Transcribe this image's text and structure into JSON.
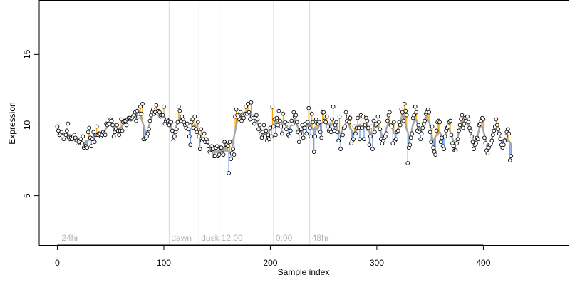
{
  "chart_data": {
    "type": "scatter",
    "title": "",
    "xlabel": "Sample index",
    "ylabel": "Expression",
    "xlim": [
      -17,
      480
    ],
    "ylim": [
      1.5,
      18.8
    ],
    "x_ticks": [
      0,
      100,
      200,
      300,
      400
    ],
    "y_ticks": [
      5,
      10,
      15
    ],
    "grid": false,
    "legend": "none",
    "colors": {
      "above_fit": "#ffa500",
      "below_fit": "#6495ed",
      "fit_line": "#a6a6a6",
      "marker_fill": "#ffffff",
      "marker_edge": "#000000",
      "annotation_line": "#d9d9d9",
      "annotation_text": "#b3b3b3"
    },
    "annotations": [
      {
        "x": 2,
        "label": "24hr",
        "line": false
      },
      {
        "x": 105,
        "label": "dawn",
        "line": true
      },
      {
        "x": 133,
        "label": "dusk",
        "line": true
      },
      {
        "x": 152,
        "label": "12:00",
        "line": true
      },
      {
        "x": 203,
        "label": "0:00",
        "line": true
      },
      {
        "x": 237,
        "label": "48hr",
        "line": true
      }
    ],
    "series": [
      {
        "name": "",
        "x_start": 0,
        "values": [
          9.9,
          9.6,
          9.3,
          9.4,
          9.5,
          9.2,
          9.0,
          9.2,
          9.3,
          9.6,
          10.1,
          9.1,
          9.0,
          9.1,
          9.0,
          9.2,
          9.3,
          9.1,
          8.9,
          8.7,
          8.8,
          8.9,
          9.0,
          8.7,
          9.2,
          8.4,
          8.5,
          8.5,
          8.4,
          9.5,
          9.8,
          9.1,
          8.5,
          9.0,
          9.5,
          8.8,
          9.3,
          9.9,
          9.3,
          9.4,
          9.4,
          9.2,
          9.3,
          9.5,
          9.4,
          9.3,
          10.1,
          10.0,
          10.1,
          10.1,
          10.4,
          10.3,
          10.0,
          9.2,
          9.5,
          9.7,
          10.0,
          9.6,
          9.3,
          9.6,
          10.4,
          9.6,
          10.2,
          10.3,
          10.3,
          10.0,
          10.4,
          10.5,
          10.5,
          10.4,
          10.5,
          10.6,
          10.7,
          10.9,
          10.3,
          11.0,
          10.6,
          10.8,
          11.3,
          10.8,
          11.5,
          9.0,
          9.0,
          9.1,
          9.2,
          9.4,
          9.7,
          10.3,
          10.7,
          10.9,
          11.1,
          10.8,
          10.9,
          11.4,
          10.8,
          11.0,
          10.9,
          10.6,
          10.7,
          10.7,
          11.3,
          10.1,
          10.3,
          10.4,
          10.3,
          10.0,
          10.2,
          10.2,
          9.6,
          8.9,
          9.2,
          9.5,
          9.7,
          10.2,
          11.3,
          11.0,
          10.3,
          10.6,
          10.4,
          10.2,
          10.0,
          9.8,
          10.1,
          9.7,
          9.2,
          8.6,
          10.2,
          10.4,
          9.8,
          10.6,
          9.7,
          9.5,
          10.2,
          9.2,
          8.3,
          9.7,
          8.9,
          9.0,
          9.4,
          8.8,
          9.0,
          8.8,
          8.5,
          8.1,
          8.0,
          8.5,
          8.3,
          7.8,
          7.8,
          8.4,
          8.5,
          7.8,
          7.9,
          8.4,
          8.4,
          8.0,
          7.9,
          8.8,
          8.6,
          8.6,
          8.5,
          6.6,
          8.8,
          7.6,
          8.0,
          8.3,
          7.9,
          10.6,
          11.1,
          10.7,
          10.6,
          10.4,
          10.9,
          10.3,
          10.6,
          10.5,
          10.8,
          11.3,
          10.8,
          11.5,
          10.9,
          10.4,
          11.6,
          10.6,
          10.5,
          10.1,
          10.5,
          10.7,
          10.4,
          9.7,
          10.0,
          9.4,
          9.1,
          9.5,
          10.0,
          9.2,
          9.6,
          8.9,
          9.3,
          9.0,
          9.8,
          9.2,
          11.3,
          9.9,
          10.4,
          9.3,
          10.5,
          10.0,
          11.0,
          10.3,
          9.9,
          9.4,
          10.8,
          9.9,
          10.2,
          9.7,
          10.1,
          9.3,
          9.2,
          9.6,
          10.3,
          10.1,
          10.9,
          10.6,
          10.7,
          10.2,
          9.5,
          8.8,
          9.4,
          9.7,
          10.0,
          9.1,
          9.8,
          10.1,
          9.4,
          10.2,
          11.2,
          9.8,
          9.2,
          10.8,
          10.2,
          8.1,
          9.2,
          10.4,
          10.1,
          10.1,
          10.2,
          9.5,
          9.1,
          10.9,
          10.9,
          10.3,
          10.2,
          10.6,
          9.9,
          9.6,
          9.7,
          9.5,
          10.4,
          11.3,
          9.6,
          10.0,
          10.2,
          9.5,
          8.9,
          10.6,
          8.3,
          9.2,
          9.3,
          9.8,
          9.9,
          10.9,
          10.3,
          10.6,
          10.2,
          10.5,
          8.7,
          8.9,
          9.0,
          9.9,
          9.4,
          9.8,
          10.5,
          9.8,
          9.0,
          10.7,
          9.8,
          10.6,
          9.0,
          10.0,
          10.5,
          10.3,
          9.8,
          8.6,
          9.2,
          9.9,
          8.3,
          10.3,
          9.5,
          10.0,
          10.1,
          10.6,
          10.2,
          9.7,
          9.0,
          8.7,
          8.9,
          9.1,
          9.2,
          9.4,
          10.3,
          10.7,
          10.9,
          10.0,
          9.9,
          8.7,
          10.2,
          8.9,
          9.0,
          9.5,
          9.6,
          10.2,
          10.0,
          11.1,
          10.9,
          10.3,
          11.5,
          11.0,
          10.7,
          7.3,
          8.4,
          8.6,
          9.1,
          9.4,
          10.5,
          10.7,
          11.3,
          10.9,
          9.6,
          10.0,
          9.5,
          9.0,
          9.4,
          9.8,
          10.1,
          10.3,
          10.8,
          10.9,
          11.1,
          10.9,
          9.5,
          8.8,
          9.9,
          8.4,
          8.1,
          7.9,
          9.6,
          10.2,
          10.3,
          10.2,
          8.8,
          9.1,
          8.5,
          8.3,
          9.2,
          9.6,
          9.8,
          9.9,
          10.2,
          10.3,
          9.3,
          8.7,
          8.5,
          8.2,
          8.2,
          8.7,
          9.0,
          9.6,
          10.0,
          10.4,
          10.7,
          9.8,
          10.1,
          10.5,
          10.3,
          10.6,
          10.2,
          9.8,
          9.6,
          9.2,
          8.8,
          8.3,
          8.6,
          8.7,
          9.1,
          9.0,
          10.0,
          10.1,
          10.3,
          10.5,
          10.4,
          9.1,
          8.7,
          8.2,
          8.0,
          8.4,
          8.6,
          8.7,
          8.9,
          9.3,
          9.6,
          9.9,
          10.4,
          10.0,
          9.7,
          9.4,
          9.0,
          8.6,
          8.4,
          8.6,
          8.9,
          9.2,
          9.5,
          9.7,
          9.4,
          7.5,
          7.8
        ]
      }
    ]
  }
}
